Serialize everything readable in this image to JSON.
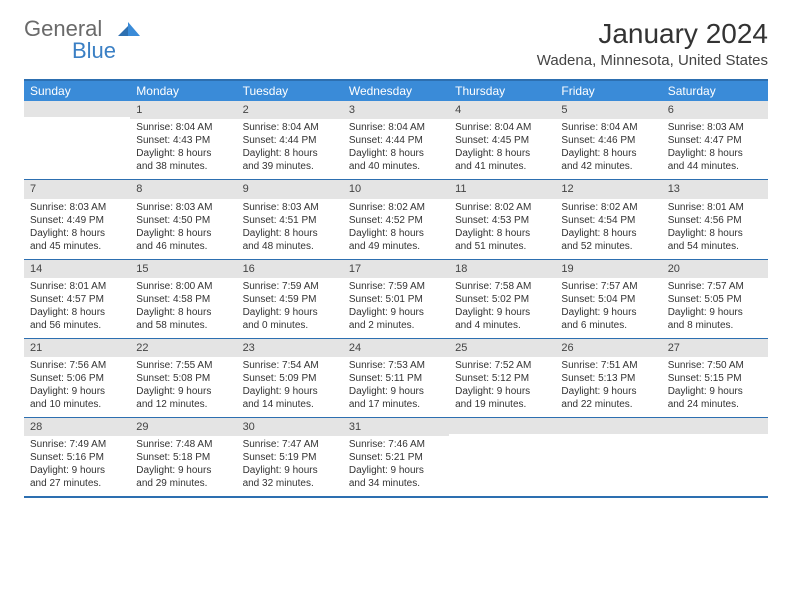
{
  "brand": {
    "part1": "General",
    "part2": "Blue"
  },
  "title": "January 2024",
  "location": "Wadena, Minnesota, United States",
  "colors": {
    "header_bg": "#3a8bd8",
    "header_text": "#ffffff",
    "border": "#2d6fb0",
    "daynum_bg": "#e4e4e4",
    "text": "#333333",
    "brand_gray": "#6a6a6a",
    "brand_blue": "#3a7fc4"
  },
  "weekdays": [
    "Sunday",
    "Monday",
    "Tuesday",
    "Wednesday",
    "Thursday",
    "Friday",
    "Saturday"
  ],
  "weeks": [
    [
      {
        "n": "",
        "sr": "",
        "ss": "",
        "dl": ""
      },
      {
        "n": "1",
        "sr": "8:04 AM",
        "ss": "4:43 PM",
        "dl": "8 hours and 38 minutes."
      },
      {
        "n": "2",
        "sr": "8:04 AM",
        "ss": "4:44 PM",
        "dl": "8 hours and 39 minutes."
      },
      {
        "n": "3",
        "sr": "8:04 AM",
        "ss": "4:44 PM",
        "dl": "8 hours and 40 minutes."
      },
      {
        "n": "4",
        "sr": "8:04 AM",
        "ss": "4:45 PM",
        "dl": "8 hours and 41 minutes."
      },
      {
        "n": "5",
        "sr": "8:04 AM",
        "ss": "4:46 PM",
        "dl": "8 hours and 42 minutes."
      },
      {
        "n": "6",
        "sr": "8:03 AM",
        "ss": "4:47 PM",
        "dl": "8 hours and 44 minutes."
      }
    ],
    [
      {
        "n": "7",
        "sr": "8:03 AM",
        "ss": "4:49 PM",
        "dl": "8 hours and 45 minutes."
      },
      {
        "n": "8",
        "sr": "8:03 AM",
        "ss": "4:50 PM",
        "dl": "8 hours and 46 minutes."
      },
      {
        "n": "9",
        "sr": "8:03 AM",
        "ss": "4:51 PM",
        "dl": "8 hours and 48 minutes."
      },
      {
        "n": "10",
        "sr": "8:02 AM",
        "ss": "4:52 PM",
        "dl": "8 hours and 49 minutes."
      },
      {
        "n": "11",
        "sr": "8:02 AM",
        "ss": "4:53 PM",
        "dl": "8 hours and 51 minutes."
      },
      {
        "n": "12",
        "sr": "8:02 AM",
        "ss": "4:54 PM",
        "dl": "8 hours and 52 minutes."
      },
      {
        "n": "13",
        "sr": "8:01 AM",
        "ss": "4:56 PM",
        "dl": "8 hours and 54 minutes."
      }
    ],
    [
      {
        "n": "14",
        "sr": "8:01 AM",
        "ss": "4:57 PM",
        "dl": "8 hours and 56 minutes."
      },
      {
        "n": "15",
        "sr": "8:00 AM",
        "ss": "4:58 PM",
        "dl": "8 hours and 58 minutes."
      },
      {
        "n": "16",
        "sr": "7:59 AM",
        "ss": "4:59 PM",
        "dl": "9 hours and 0 minutes."
      },
      {
        "n": "17",
        "sr": "7:59 AM",
        "ss": "5:01 PM",
        "dl": "9 hours and 2 minutes."
      },
      {
        "n": "18",
        "sr": "7:58 AM",
        "ss": "5:02 PM",
        "dl": "9 hours and 4 minutes."
      },
      {
        "n": "19",
        "sr": "7:57 AM",
        "ss": "5:04 PM",
        "dl": "9 hours and 6 minutes."
      },
      {
        "n": "20",
        "sr": "7:57 AM",
        "ss": "5:05 PM",
        "dl": "9 hours and 8 minutes."
      }
    ],
    [
      {
        "n": "21",
        "sr": "7:56 AM",
        "ss": "5:06 PM",
        "dl": "9 hours and 10 minutes."
      },
      {
        "n": "22",
        "sr": "7:55 AM",
        "ss": "5:08 PM",
        "dl": "9 hours and 12 minutes."
      },
      {
        "n": "23",
        "sr": "7:54 AM",
        "ss": "5:09 PM",
        "dl": "9 hours and 14 minutes."
      },
      {
        "n": "24",
        "sr": "7:53 AM",
        "ss": "5:11 PM",
        "dl": "9 hours and 17 minutes."
      },
      {
        "n": "25",
        "sr": "7:52 AM",
        "ss": "5:12 PM",
        "dl": "9 hours and 19 minutes."
      },
      {
        "n": "26",
        "sr": "7:51 AM",
        "ss": "5:13 PM",
        "dl": "9 hours and 22 minutes."
      },
      {
        "n": "27",
        "sr": "7:50 AM",
        "ss": "5:15 PM",
        "dl": "9 hours and 24 minutes."
      }
    ],
    [
      {
        "n": "28",
        "sr": "7:49 AM",
        "ss": "5:16 PM",
        "dl": "9 hours and 27 minutes."
      },
      {
        "n": "29",
        "sr": "7:48 AM",
        "ss": "5:18 PM",
        "dl": "9 hours and 29 minutes."
      },
      {
        "n": "30",
        "sr": "7:47 AM",
        "ss": "5:19 PM",
        "dl": "9 hours and 32 minutes."
      },
      {
        "n": "31",
        "sr": "7:46 AM",
        "ss": "5:21 PM",
        "dl": "9 hours and 34 minutes."
      },
      {
        "n": "",
        "sr": "",
        "ss": "",
        "dl": ""
      },
      {
        "n": "",
        "sr": "",
        "ss": "",
        "dl": ""
      },
      {
        "n": "",
        "sr": "",
        "ss": "",
        "dl": ""
      }
    ]
  ]
}
